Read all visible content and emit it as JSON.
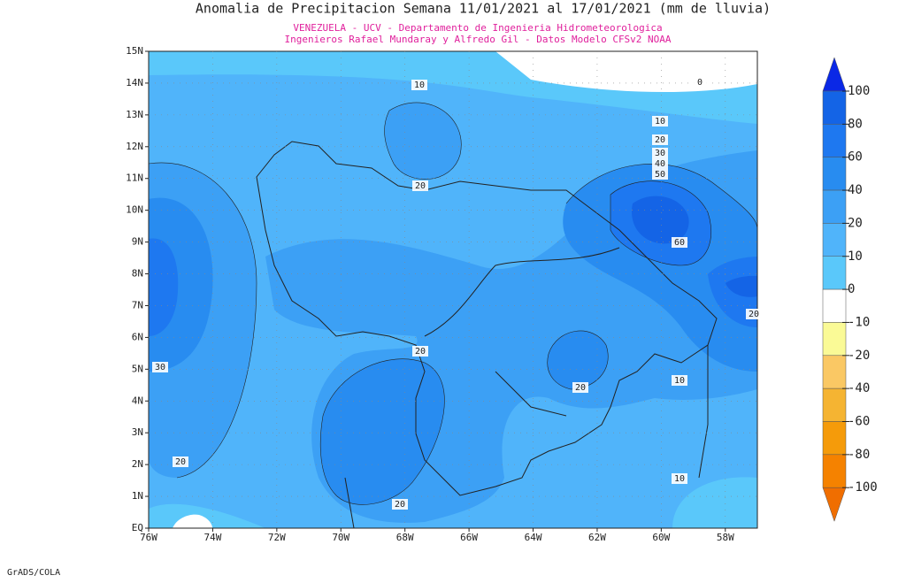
{
  "title": "Anomalia de Precipitacion Semana 11/01/2021 al 17/01/2021 (mm de lluvia)",
  "subtitle_1": "VENEZUELA - UCV - Departamento de Ingenieria Hidrometeorologica",
  "subtitle_2": "Ingenieros Rafael Mundaray y Alfredo Gil - Datos Modelo CFSv2 NOAA",
  "footer": "GrADS/COLA",
  "map": {
    "xlim": [
      -76,
      -57
    ],
    "ylim": [
      0,
      15
    ],
    "xticks": [
      {
        "value": -76,
        "label": "76W"
      },
      {
        "value": -74,
        "label": "74W"
      },
      {
        "value": -72,
        "label": "72W"
      },
      {
        "value": -70,
        "label": "70W"
      },
      {
        "value": -68,
        "label": "68W"
      },
      {
        "value": -66,
        "label": "66W"
      },
      {
        "value": -64,
        "label": "64W"
      },
      {
        "value": -62,
        "label": "62W"
      },
      {
        "value": -60,
        "label": "60W"
      },
      {
        "value": -58,
        "label": "58W"
      }
    ],
    "yticks": [
      {
        "value": 0,
        "label": "EQ"
      },
      {
        "value": 1,
        "label": "1N"
      },
      {
        "value": 2,
        "label": "2N"
      },
      {
        "value": 3,
        "label": "3N"
      },
      {
        "value": 4,
        "label": "4N"
      },
      {
        "value": 5,
        "label": "5N"
      },
      {
        "value": 6,
        "label": "6N"
      },
      {
        "value": 7,
        "label": "7N"
      },
      {
        "value": 8,
        "label": "8N"
      },
      {
        "value": 9,
        "label": "9N"
      },
      {
        "value": 10,
        "label": "10N"
      },
      {
        "value": 11,
        "label": "11N"
      },
      {
        "value": 12,
        "label": "12N"
      },
      {
        "value": 13,
        "label": "13N"
      },
      {
        "value": 14,
        "label": "14N"
      },
      {
        "value": 15,
        "label": "15N"
      }
    ],
    "contour_labels": [
      10,
      20,
      0,
      10,
      20,
      30,
      40,
      50,
      60,
      30,
      20,
      20,
      20,
      20,
      10,
      10,
      20
    ]
  },
  "colorbar": {
    "levels": [
      100,
      80,
      60,
      40,
      20,
      10,
      0,
      -10,
      -20,
      -40,
      -60,
      -80,
      -100
    ],
    "colors": [
      "#0a28e6",
      "#1464e6",
      "#1e78f0",
      "#288cf0",
      "#3ca0f5",
      "#50b4fa",
      "#5ac8fa",
      "#ffffff",
      "#fafa96",
      "#fac864",
      "#f5b432",
      "#f59b0a",
      "#f58200",
      "#f06e00"
    ]
  }
}
